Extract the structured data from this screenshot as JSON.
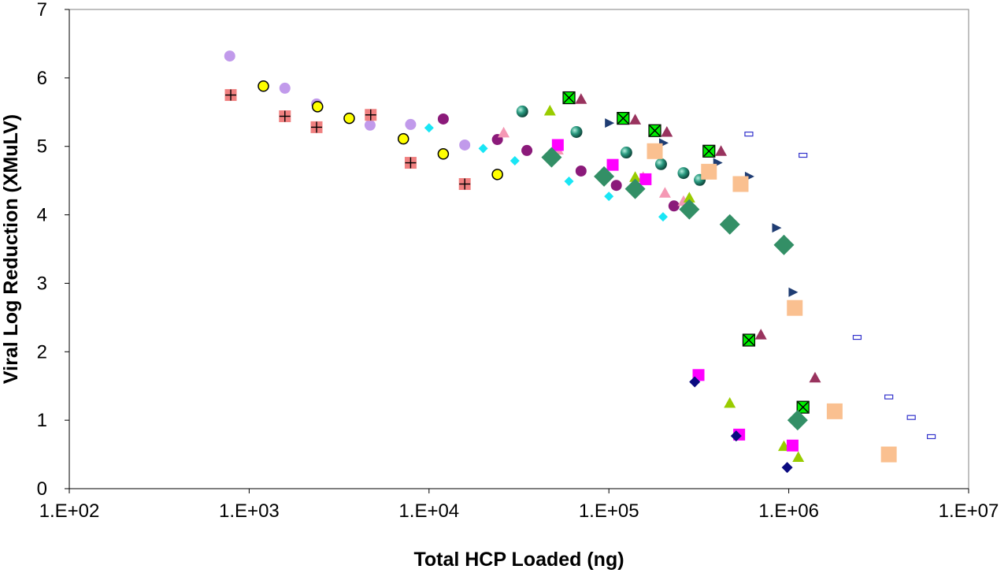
{
  "chart_data": {
    "type": "scatter",
    "title": "",
    "xlabel": "Total HCP Loaded (ng)",
    "ylabel": "Viral Log Reduction (XMuLV)",
    "x_scale": "log",
    "xlim": [
      100,
      10000000
    ],
    "ylim": [
      0,
      7
    ],
    "grid": false,
    "legend": "none",
    "x_tick_values": [
      100,
      1000,
      10000,
      100000,
      1000000,
      10000000
    ],
    "x_tick_labels": [
      "1.E+02",
      "1.E+03",
      "1.E+04",
      "1.E+05",
      "1.E+06",
      "1.E+07"
    ],
    "y_tick_values": [
      0,
      1,
      2,
      3,
      4,
      5,
      6,
      7
    ],
    "y_tick_labels": [
      "0",
      "1",
      "2",
      "3",
      "4",
      "5",
      "6",
      "7"
    ],
    "series": [
      {
        "marker": "lavender-circle",
        "color": "#c19aeb",
        "points": [
          [
            780,
            6.32
          ],
          [
            1580,
            5.85
          ],
          [
            2370,
            5.62
          ],
          [
            4700,
            5.31
          ],
          [
            7900,
            5.32
          ],
          [
            15800,
            5.02
          ]
        ]
      },
      {
        "marker": "salmon-square-plus",
        "color": "#f08080",
        "points": [
          [
            790,
            5.75
          ],
          [
            1580,
            5.44
          ],
          [
            2370,
            5.28
          ],
          [
            4740,
            5.46
          ],
          [
            7900,
            4.76
          ],
          [
            15800,
            4.45
          ]
        ]
      },
      {
        "marker": "yellow-circle",
        "color": "#ffff00",
        "points": [
          [
            1200,
            5.88
          ],
          [
            2400,
            5.58
          ],
          [
            3600,
            5.41
          ],
          [
            7200,
            5.11
          ],
          [
            12000,
            4.89
          ],
          [
            24000,
            4.59
          ]
        ]
      },
      {
        "marker": "cyan-diamond",
        "color": "#19e6f5",
        "points": [
          [
            10000,
            5.27
          ],
          [
            20000,
            4.97
          ],
          [
            30000,
            4.79
          ],
          [
            60000,
            4.49
          ],
          [
            100000,
            4.27
          ],
          [
            200000,
            3.97
          ]
        ]
      },
      {
        "marker": "purple-circle",
        "color": "#8b1a7a",
        "points": [
          [
            12000,
            5.4
          ],
          [
            24000,
            5.1
          ],
          [
            35000,
            4.94
          ],
          [
            70000,
            4.64
          ],
          [
            110000,
            4.43
          ],
          [
            230000,
            4.13
          ]
        ]
      },
      {
        "marker": "pink-triangle",
        "color": "#f598b4",
        "points": [
          [
            26000,
            5.2
          ],
          [
            52000,
            4.95
          ],
          [
            155000,
            4.55
          ],
          [
            205000,
            4.32
          ],
          [
            260000,
            4.2
          ]
        ]
      },
      {
        "marker": "teal-sphere",
        "color": "#1a7a66",
        "points": [
          [
            33000,
            5.51
          ],
          [
            66000,
            5.21
          ],
          [
            125000,
            4.91
          ],
          [
            195000,
            4.74
          ],
          [
            260000,
            4.61
          ],
          [
            320000,
            4.51
          ]
        ]
      },
      {
        "marker": "lime-triangle",
        "color": "#99cc00",
        "points": [
          [
            47000,
            5.52
          ],
          [
            140000,
            4.55
          ],
          [
            280000,
            4.25
          ],
          [
            470000,
            1.25
          ],
          [
            940000,
            0.62
          ],
          [
            1130000,
            0.46
          ]
        ]
      },
      {
        "marker": "green-square-x",
        "color": "#00ee00",
        "points": [
          [
            60000,
            5.71
          ],
          [
            120000,
            5.41
          ],
          [
            180000,
            5.23
          ],
          [
            360000,
            4.93
          ],
          [
            600000,
            2.17
          ],
          [
            1200000,
            1.19
          ]
        ]
      },
      {
        "marker": "maroon-triangle",
        "color": "#99335e",
        "points": [
          [
            70000,
            5.69
          ],
          [
            140000,
            5.39
          ],
          [
            210000,
            5.21
          ],
          [
            420000,
            4.93
          ],
          [
            700000,
            2.25
          ],
          [
            1400000,
            1.62
          ]
        ]
      },
      {
        "marker": "magenta-square",
        "color": "#ff00ff",
        "points": [
          [
            52000,
            5.02
          ],
          [
            105000,
            4.73
          ],
          [
            160000,
            4.52
          ],
          [
            315000,
            1.66
          ],
          [
            530000,
            0.79
          ],
          [
            1050000,
            0.63
          ]
        ]
      },
      {
        "marker": "navy-diamond",
        "color": "#0a0a80",
        "points": [
          [
            50000,
            4.82
          ],
          [
            300000,
            1.56
          ],
          [
            510000,
            0.77
          ],
          [
            980000,
            0.31
          ]
        ]
      },
      {
        "marker": "navy-right-triangle",
        "color": "#1f3d73",
        "points": [
          [
            100000,
            5.34
          ],
          [
            200000,
            5.05
          ],
          [
            400000,
            4.76
          ],
          [
            600000,
            4.56
          ],
          [
            850000,
            3.81
          ],
          [
            1050000,
            2.87
          ]
        ]
      },
      {
        "marker": "peach-square",
        "color": "#fac090",
        "points": [
          [
            180000,
            4.93
          ],
          [
            360000,
            4.63
          ],
          [
            540000,
            4.45
          ],
          [
            1080000,
            2.64
          ],
          [
            1800000,
            1.13
          ],
          [
            3600000,
            0.5
          ]
        ]
      },
      {
        "marker": "sea-green-diamond",
        "color": "#338f66",
        "points": [
          [
            48000,
            4.84
          ],
          [
            94000,
            4.56
          ],
          [
            140000,
            4.38
          ],
          [
            280000,
            4.08
          ],
          [
            470000,
            3.86
          ],
          [
            940000,
            3.56
          ],
          [
            1120000,
            1.0
          ]
        ]
      },
      {
        "marker": "blue-open-rectangle",
        "color": "#3333cc",
        "points": [
          [
            600000,
            5.18
          ],
          [
            1200000,
            4.87
          ],
          [
            2400000,
            2.21
          ],
          [
            3600000,
            1.34
          ],
          [
            4800000,
            1.04
          ],
          [
            6200000,
            0.76
          ]
        ]
      }
    ]
  }
}
